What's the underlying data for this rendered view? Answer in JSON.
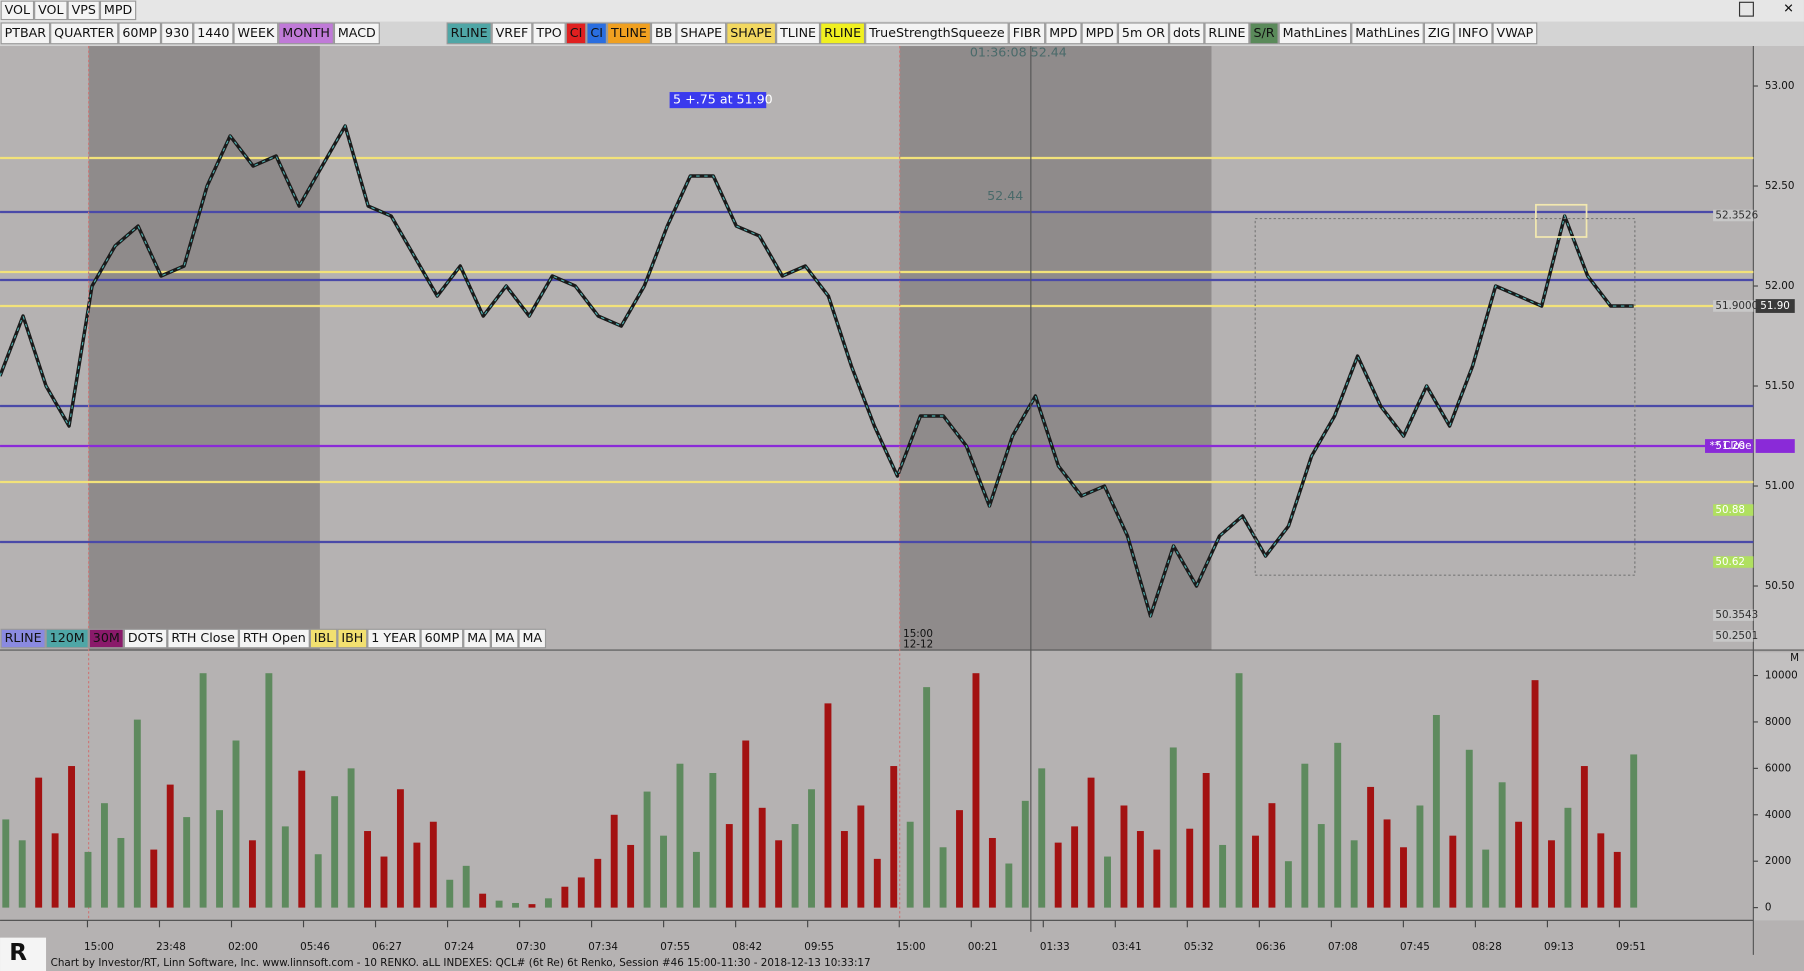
{
  "top_bar": [
    "VOL",
    "VOL",
    "VPS",
    "MPD"
  ],
  "toolbar": [
    {
      "label": "PTBAR",
      "bg": "#f4f4f4"
    },
    {
      "label": "QUARTER",
      "bg": "#f4f4f4"
    },
    {
      "label": "60MP",
      "bg": "#f4f4f4"
    },
    {
      "label": "930",
      "bg": "#f4f4f4"
    },
    {
      "label": "1440",
      "bg": "#f4f4f4"
    },
    {
      "label": "WEEK",
      "bg": "#f4f4f4"
    },
    {
      "label": "MONTH",
      "bg": "#c07ad8"
    },
    {
      "label": "MACD",
      "bg": "#f4f4f4"
    },
    {
      "label": "RLINE",
      "bg": "#4fa6a6"
    },
    {
      "label": "VREF",
      "bg": "#f4f4f4"
    },
    {
      "label": "TPO",
      "bg": "#f4f4f4"
    },
    {
      "label": "CI",
      "bg": "#e02020"
    },
    {
      "label": "CI",
      "bg": "#2a6ee0"
    },
    {
      "label": "TLINE",
      "bg": "#f0a020"
    },
    {
      "label": "BB",
      "bg": "#f4f4f4"
    },
    {
      "label": "SHAPE",
      "bg": "#f4f4f4"
    },
    {
      "label": "SHAPE",
      "bg": "#f2d860"
    },
    {
      "label": "TLINE",
      "bg": "#f4f4f4"
    },
    {
      "label": "RLINE",
      "bg": "#f0f020"
    },
    {
      "label": "TrueStrengthSqueeze",
      "bg": "#f4f4f4"
    },
    {
      "label": "FIBR",
      "bg": "#f4f4f4"
    },
    {
      "label": "MPD",
      "bg": "#f4f4f4"
    },
    {
      "label": "MPD",
      "bg": "#f4f4f4"
    },
    {
      "label": "5m OR",
      "bg": "#f4f4f4"
    },
    {
      "label": "dots",
      "bg": "#f4f4f4"
    },
    {
      "label": "RLINE",
      "bg": "#f4f4f4"
    },
    {
      "label": "S/R",
      "bg": "#5a8a5a"
    },
    {
      "label": "MathLines",
      "bg": "#f4f4f4"
    },
    {
      "label": "MathLines",
      "bg": "#f4f4f4"
    },
    {
      "label": "ZIG",
      "bg": "#f4f4f4"
    },
    {
      "label": "INFO",
      "bg": "#f4f4f4"
    },
    {
      "label": "VWAP",
      "bg": "#f4f4f4"
    }
  ],
  "indicator_bar": [
    {
      "label": "RLINE",
      "bg": "#8a8ae0"
    },
    {
      "label": "120M",
      "bg": "#4fa6a6"
    },
    {
      "label": "30M",
      "bg": "#8a1a6a"
    },
    {
      "label": "DOTS",
      "bg": "#f4f4f4"
    },
    {
      "label": "RTH Close",
      "bg": "#f4f4f4"
    },
    {
      "label": "RTH Open",
      "bg": "#f4f4f4"
    },
    {
      "label": "IBL",
      "bg": "#f2e070"
    },
    {
      "label": "IBH",
      "bg": "#f2e070"
    },
    {
      "label": "1 YEAR",
      "bg": "#f4f4f4"
    },
    {
      "label": "60MP",
      "bg": "#f4f4f4"
    },
    {
      "label": "MA",
      "bg": "#f4f4f4"
    },
    {
      "label": "MA",
      "bg": "#f4f4f4"
    },
    {
      "label": "MA",
      "bg": "#f4f4f4"
    }
  ],
  "chart_data": {
    "type": "line",
    "color": "#1a1a1a",
    "values": [
      51.55,
      51.85,
      51.5,
      51.3,
      52.0,
      52.2,
      52.3,
      52.05,
      52.1,
      52.5,
      52.75,
      52.6,
      52.65,
      52.4,
      52.6,
      52.8,
      52.4,
      52.35,
      52.15,
      51.95,
      52.1,
      51.85,
      52.0,
      51.85,
      52.05,
      52.0,
      51.85,
      51.8,
      52.0,
      52.3,
      52.55,
      52.55,
      52.3,
      52.25,
      52.05,
      52.1,
      51.95,
      51.6,
      51.3,
      51.05,
      51.35,
      51.35,
      51.2,
      50.9,
      51.25,
      51.45,
      51.1,
      50.95,
      51.0,
      50.75,
      50.35,
      50.7,
      50.5,
      50.75,
      50.85,
      50.65,
      50.8,
      51.15,
      51.35,
      51.65,
      51.4,
      51.25,
      51.5,
      51.3,
      51.6,
      52.0,
      51.95,
      51.9,
      52.35,
      52.05,
      51.9,
      51.9
    ],
    "ylim": [
      50.18,
      53.2
    ],
    "yticks": [
      {
        "value": 53,
        "label": "53.00"
      },
      {
        "value": 52.5,
        "label": "52.50"
      },
      {
        "value": 52,
        "label": "52.00"
      },
      {
        "value": 51.5,
        "label": "51.50"
      },
      {
        "value": 51,
        "label": "51.00"
      },
      {
        "value": 50.5,
        "label": "50.50"
      }
    ],
    "levels": [
      {
        "value": 52.64,
        "color": "#f2e27a"
      },
      {
        "value": 52.07,
        "color": "#f2e27a"
      },
      {
        "value": 51.9,
        "color": "#f2e27a"
      },
      {
        "value": 51.02,
        "color": "#f2e27a"
      },
      {
        "value": 52.37,
        "color": "#4a4aa8"
      },
      {
        "value": 52.03,
        "color": "#4a4aa8"
      },
      {
        "value": 51.4,
        "color": "#4a4aa8"
      },
      {
        "value": 50.72,
        "color": "#4a4aa8"
      },
      {
        "value": 51.2,
        "color": "#8a2ad8"
      }
    ],
    "markers": [
      {
        "value": 52.3526,
        "label": "52.3526",
        "bg": "#c8c8c8",
        "fg": "#303030"
      },
      {
        "value": 51.9,
        "label": "51.9000",
        "bg": "#c8c8c8",
        "fg": "#303030"
      },
      {
        "value": 51.2,
        "label": "51.20",
        "bg": "#8a2ad8",
        "fg": "#ffffff"
      },
      {
        "value": 50.88,
        "label": "50.88",
        "bg": "#b0e060",
        "fg": "#ffffff"
      },
      {
        "value": 50.62,
        "label": "50.62",
        "bg": "#b0e060",
        "fg": "#ffffff"
      },
      {
        "value": 50.3543,
        "label": "50.3543",
        "bg": "#c8c8c8",
        "fg": "#303030"
      },
      {
        "value": 50.2501,
        "label": "50.2501",
        "bg": "#c8c8c8",
        "fg": "#303030"
      }
    ],
    "close_tag": "** Close",
    "last_price": {
      "value": 51.9,
      "label": "51.90"
    }
  },
  "time_labels": [
    "15:00",
    "23:48",
    "02:00",
    "05:46",
    "06:27",
    "07:24",
    "07:30",
    "07:34",
    "07:55",
    "08:42",
    "09:55",
    "15:00",
    "00:21",
    "01:33",
    "03:41",
    "05:32",
    "06:36",
    "07:08",
    "07:45",
    "08:28",
    "09:13",
    "09:51"
  ],
  "volume_chart": {
    "type": "bar",
    "up_color": "#5e8a5e",
    "down_color": "#a31212",
    "unit": "M",
    "values": [
      3800,
      2900,
      5600,
      3200,
      6100,
      2400,
      4500,
      3000,
      8100,
      2500,
      5300,
      3900,
      10100,
      4200,
      7200,
      2900,
      10100,
      3500,
      5900,
      2300,
      4800,
      6000,
      3300,
      2200,
      5100,
      2800,
      3700,
      1200,
      1800,
      600,
      300,
      200,
      150,
      400,
      900,
      1300,
      2100,
      4000,
      2700,
      5000,
      3100,
      6200,
      2400,
      5800,
      3600,
      7200,
      4300,
      2900,
      3600,
      5100,
      8800,
      3300,
      4400,
      2100,
      6100,
      3700,
      9500,
      2600,
      4200,
      10100,
      3000,
      1900,
      4600,
      6000,
      2800,
      3500,
      5600,
      2200,
      4400,
      3300,
      2500,
      6900,
      3400,
      5800,
      2700,
      10100,
      3100,
      4500,
      2000,
      6200,
      3600,
      7100,
      2900,
      5200,
      3800,
      2600,
      4400,
      8300,
      3100,
      6800,
      2500,
      5400,
      3700,
      9800,
      2900,
      4300,
      6100,
      3200,
      2400,
      6600
    ],
    "ylim": [
      -550,
      11000
    ],
    "yticks": [
      0,
      2000,
      4000,
      6000,
      8000,
      10000
    ]
  },
  "annotations": {
    "cursor": "01:36:08  52.44",
    "price_tag": "52.44",
    "order": "5  +.75 at 51.90",
    "session_time": "15:00",
    "session_date": "12-12"
  },
  "footer": "Chart by Investor/RT, Linn Software, Inc. www.linnsoft.com - 10 RENKO. aLL INDEXES: QCL# (6t Re) 6t Renko, Session #46 15:00-11:30 - 2018-12-13 10:33:17"
}
